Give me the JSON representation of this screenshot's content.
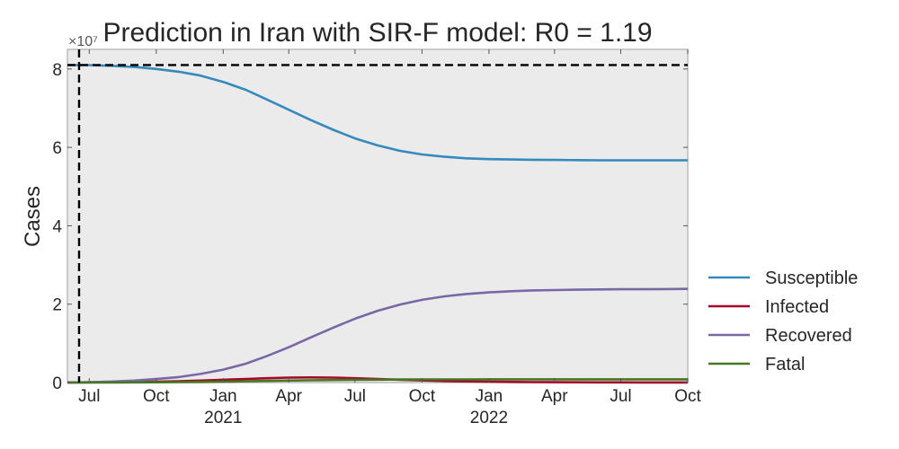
{
  "chart_data": {
    "type": "line",
    "title": "Prediction in Iran with SIR-F model: R0 = 1.19",
    "ylabel": "Cases",
    "xlabel": "",
    "y_scale_label": "×10⁷",
    "ylim": [
      0,
      8.5
    ],
    "y_ticks": [
      0,
      2,
      4,
      6,
      8
    ],
    "y_tick_labels": [
      "0",
      "2",
      "4",
      "6",
      "8"
    ],
    "xlim": [
      "2020-06-01",
      "2022-10-01"
    ],
    "x_ticks": [
      {
        "date": "2020-07-01",
        "label": "Jul",
        "year": ""
      },
      {
        "date": "2020-10-01",
        "label": "Oct",
        "year": ""
      },
      {
        "date": "2021-01-01",
        "label": "Jan",
        "year": "2021"
      },
      {
        "date": "2021-04-01",
        "label": "Apr",
        "year": ""
      },
      {
        "date": "2021-07-01",
        "label": "Jul",
        "year": ""
      },
      {
        "date": "2021-10-01",
        "label": "Oct",
        "year": ""
      },
      {
        "date": "2022-01-01",
        "label": "Jan",
        "year": "2022"
      },
      {
        "date": "2022-04-01",
        "label": "Apr",
        "year": ""
      },
      {
        "date": "2022-07-01",
        "label": "Jul",
        "year": ""
      },
      {
        "date": "2022-10-01",
        "label": "Oct",
        "year": ""
      }
    ],
    "reference_lines": {
      "vertical_date": "2020-06-17",
      "horizontal_value": 8.1
    },
    "grid": false,
    "legend_position": "right",
    "x": [
      "2020-06-01",
      "2020-07-01",
      "2020-08-01",
      "2020-09-01",
      "2020-10-01",
      "2020-11-01",
      "2020-12-01",
      "2021-01-01",
      "2021-02-01",
      "2021-03-01",
      "2021-04-01",
      "2021-05-01",
      "2021-06-01",
      "2021-07-01",
      "2021-08-01",
      "2021-09-01",
      "2021-10-01",
      "2021-11-01",
      "2021-12-01",
      "2022-01-01",
      "2022-02-01",
      "2022-03-01",
      "2022-04-01",
      "2022-05-01",
      "2022-06-01",
      "2022-07-01",
      "2022-08-01",
      "2022-09-01",
      "2022-10-01"
    ],
    "series": [
      {
        "name": "Susceptible",
        "color": "#348abd",
        "values": [
          8.1,
          8.1,
          8.08,
          8.05,
          8.0,
          7.93,
          7.83,
          7.67,
          7.47,
          7.23,
          6.96,
          6.7,
          6.45,
          6.23,
          6.05,
          5.91,
          5.82,
          5.76,
          5.72,
          5.7,
          5.69,
          5.685,
          5.68,
          5.675,
          5.67,
          5.67,
          5.67,
          5.67,
          5.67
        ]
      },
      {
        "name": "Infected",
        "color": "#a60628",
        "values": [
          0.002,
          0.005,
          0.01,
          0.015,
          0.022,
          0.035,
          0.05,
          0.07,
          0.09,
          0.11,
          0.125,
          0.13,
          0.125,
          0.11,
          0.09,
          0.07,
          0.055,
          0.04,
          0.03,
          0.022,
          0.016,
          0.012,
          0.009,
          0.007,
          0.005,
          0.004,
          0.003,
          0.003,
          0.002
        ]
      },
      {
        "name": "Recovered",
        "color": "#7a68a6",
        "values": [
          0.0,
          0.01,
          0.025,
          0.05,
          0.09,
          0.14,
          0.22,
          0.33,
          0.48,
          0.67,
          0.9,
          1.15,
          1.4,
          1.63,
          1.83,
          1.99,
          2.11,
          2.2,
          2.26,
          2.3,
          2.33,
          2.35,
          2.36,
          2.37,
          2.375,
          2.38,
          2.38,
          2.385,
          2.39
        ]
      },
      {
        "name": "Fatal",
        "color": "#467821",
        "values": [
          0.0,
          0.001,
          0.002,
          0.004,
          0.007,
          0.011,
          0.017,
          0.024,
          0.032,
          0.041,
          0.05,
          0.058,
          0.065,
          0.07,
          0.074,
          0.077,
          0.079,
          0.08,
          0.081,
          0.082,
          0.082,
          0.083,
          0.083,
          0.083,
          0.083,
          0.083,
          0.083,
          0.083,
          0.083
        ]
      }
    ]
  },
  "colors": {
    "plot_background": "#ebebeb",
    "frame": "#bcbcbc",
    "reference_line": "#000000"
  }
}
